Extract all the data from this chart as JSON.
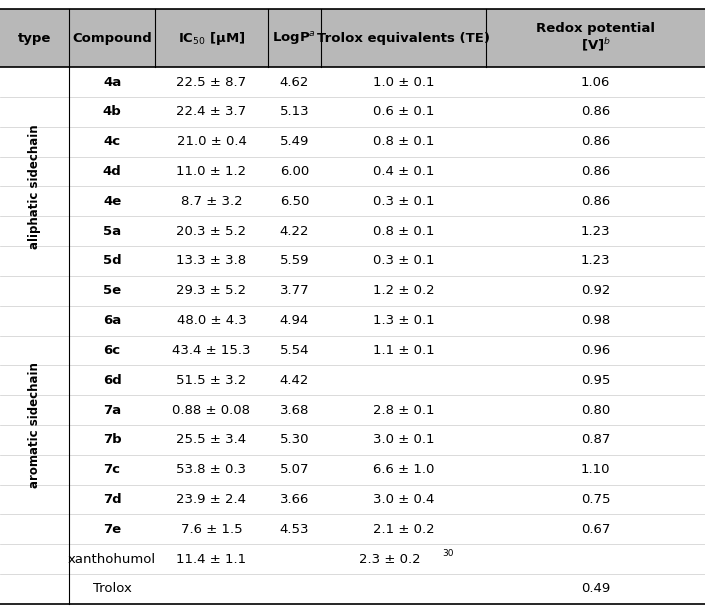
{
  "figsize": [
    7.05,
    6.1
  ],
  "dpi": 100,
  "header_bg": "#b8b8b8",
  "header_fontsize": 9.5,
  "data_fontsize": 9.5,
  "label_fontsize": 8.5,
  "rows": [
    {
      "compound": "4a",
      "ic50": "22.5 ± 8.7",
      "logp": "4.62",
      "te": "1.0 ± 0.1",
      "te_sup": "",
      "redox": "1.06",
      "bold": true
    },
    {
      "compound": "4b",
      "ic50": "22.4 ± 3.7",
      "logp": "5.13",
      "te": "0.6 ± 0.1",
      "te_sup": "",
      "redox": "0.86",
      "bold": true
    },
    {
      "compound": "4c",
      "ic50": "21.0 ± 0.4",
      "logp": "5.49",
      "te": "0.8 ± 0.1",
      "te_sup": "",
      "redox": "0.86",
      "bold": true
    },
    {
      "compound": "4d",
      "ic50": "11.0 ± 1.2",
      "logp": "6.00",
      "te": "0.4 ± 0.1",
      "te_sup": "",
      "redox": "0.86",
      "bold": true
    },
    {
      "compound": "4e",
      "ic50": "8.7 ± 3.2",
      "logp": "6.50",
      "te": "0.3 ± 0.1",
      "te_sup": "",
      "redox": "0.86",
      "bold": true
    },
    {
      "compound": "5a",
      "ic50": "20.3 ± 5.2",
      "logp": "4.22",
      "te": "0.8 ± 0.1",
      "te_sup": "",
      "redox": "1.23",
      "bold": true
    },
    {
      "compound": "5d",
      "ic50": "13.3 ± 3.8",
      "logp": "5.59",
      "te": "0.3 ± 0.1",
      "te_sup": "",
      "redox": "1.23",
      "bold": true
    },
    {
      "compound": "5e",
      "ic50": "29.3 ± 5.2",
      "logp": "3.77",
      "te": "1.2 ± 0.2",
      "te_sup": "",
      "redox": "0.92",
      "bold": true
    },
    {
      "compound": "6a",
      "ic50": "48.0 ± 4.3",
      "logp": "4.94",
      "te": "1.3 ± 0.1",
      "te_sup": "",
      "redox": "0.98",
      "bold": true
    },
    {
      "compound": "6c",
      "ic50": "43.4 ± 15.3",
      "logp": "5.54",
      "te": "1.1 ± 0.1",
      "te_sup": "",
      "redox": "0.96",
      "bold": true
    },
    {
      "compound": "6d",
      "ic50": "51.5 ± 3.2",
      "logp": "4.42",
      "te": "",
      "te_sup": "",
      "redox": "0.95",
      "bold": true
    },
    {
      "compound": "7a",
      "ic50": "0.88 ± 0.08",
      "logp": "3.68",
      "te": "2.8 ± 0.1",
      "te_sup": "",
      "redox": "0.80",
      "bold": true
    },
    {
      "compound": "7b",
      "ic50": "25.5 ± 3.4",
      "logp": "5.30",
      "te": "3.0 ± 0.1",
      "te_sup": "",
      "redox": "0.87",
      "bold": true
    },
    {
      "compound": "7c",
      "ic50": "53.8 ± 0.3",
      "logp": "5.07",
      "te": "6.6 ± 1.0",
      "te_sup": "",
      "redox": "1.10",
      "bold": true
    },
    {
      "compound": "7d",
      "ic50": "23.9 ± 2.4",
      "logp": "3.66",
      "te": "3.0 ± 0.4",
      "te_sup": "",
      "redox": "0.75",
      "bold": true
    },
    {
      "compound": "7e",
      "ic50": "7.6 ± 1.5",
      "logp": "4.53",
      "te": "2.1 ± 0.2",
      "te_sup": "",
      "redox": "0.67",
      "bold": true
    },
    {
      "compound": "xanthohumol",
      "ic50": "11.4 ± 1.1",
      "logp": "",
      "te": "2.3 ± 0.2",
      "te_sup": "30",
      "redox": "",
      "bold": false
    },
    {
      "compound": "Trolox",
      "ic50": "",
      "logp": "",
      "te": "",
      "te_sup": "",
      "redox": "0.49",
      "bold": false
    }
  ],
  "aliphatic_range": [
    0,
    7
  ],
  "aromatic_range": [
    8,
    15
  ],
  "aliphatic_label": "aliphatic sidechain",
  "aromatic_label": "aromatic sidechain"
}
